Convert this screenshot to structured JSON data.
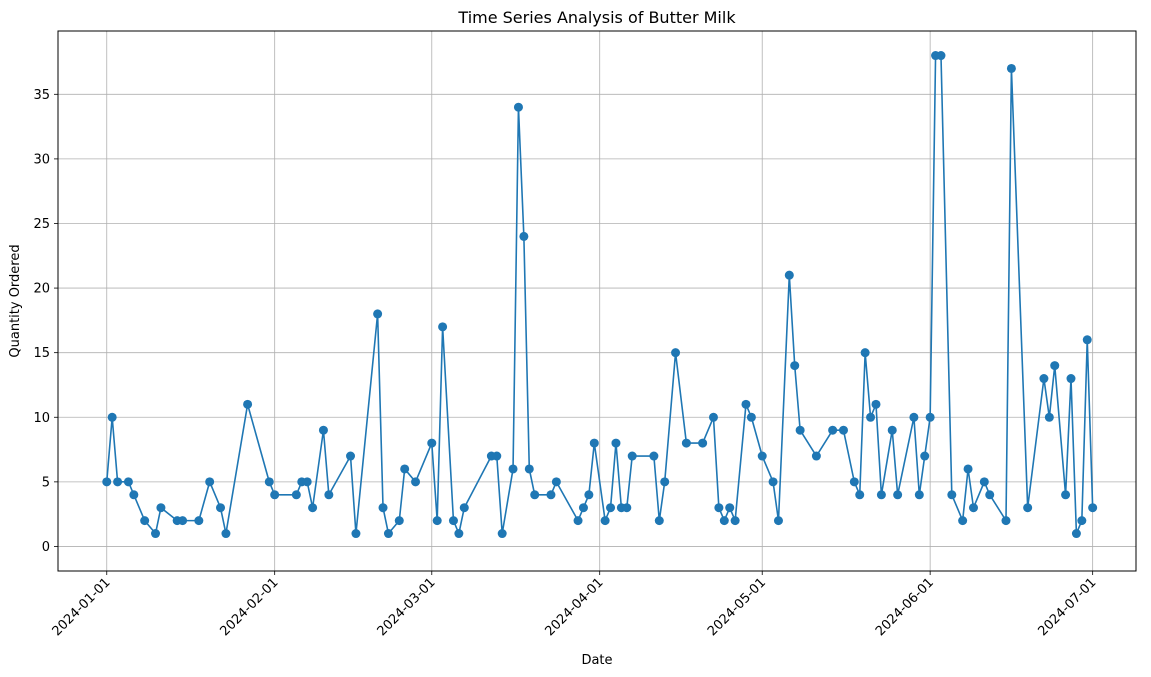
{
  "chart_data": {
    "type": "line",
    "title": "Time Series Analysis of Butter Milk",
    "xlabel": "Date",
    "ylabel": "Quantity Ordered",
    "xlim": [
      "2023-12-23",
      "2024-07-09"
    ],
    "ylim": [
      -1.9,
      39.9
    ],
    "grid": true,
    "color": "#1f77b4",
    "x_ticks": [
      "2024-01-01",
      "2024-02-01",
      "2024-03-01",
      "2024-04-01",
      "2024-05-01",
      "2024-06-01",
      "2024-07-01"
    ],
    "y_ticks": [
      0,
      5,
      10,
      15,
      20,
      25,
      30,
      35
    ],
    "series": [
      {
        "marker": "circle",
        "points": [
          [
            "2024-01-01",
            5
          ],
          [
            "2024-01-02",
            10
          ],
          [
            "2024-01-03",
            5
          ],
          [
            "2024-01-05",
            5
          ],
          [
            "2024-01-06",
            4
          ],
          [
            "2024-01-08",
            2
          ],
          [
            "2024-01-10",
            1
          ],
          [
            "2024-01-11",
            3
          ],
          [
            "2024-01-14",
            2
          ],
          [
            "2024-01-15",
            2
          ],
          [
            "2024-01-18",
            2
          ],
          [
            "2024-01-20",
            5
          ],
          [
            "2024-01-22",
            3
          ],
          [
            "2024-01-23",
            1
          ],
          [
            "2024-01-27",
            11
          ],
          [
            "2024-01-31",
            5
          ],
          [
            "2024-02-01",
            4
          ],
          [
            "2024-02-05",
            4
          ],
          [
            "2024-02-06",
            5
          ],
          [
            "2024-02-07",
            5
          ],
          [
            "2024-02-08",
            3
          ],
          [
            "2024-02-10",
            9
          ],
          [
            "2024-02-11",
            4
          ],
          [
            "2024-02-15",
            7
          ],
          [
            "2024-02-16",
            1
          ],
          [
            "2024-02-20",
            18
          ],
          [
            "2024-02-21",
            3
          ],
          [
            "2024-02-22",
            1
          ],
          [
            "2024-02-24",
            2
          ],
          [
            "2024-02-25",
            6
          ],
          [
            "2024-02-27",
            5
          ],
          [
            "2024-03-01",
            8
          ],
          [
            "2024-03-02",
            2
          ],
          [
            "2024-03-03",
            17
          ],
          [
            "2024-03-05",
            2
          ],
          [
            "2024-03-06",
            1
          ],
          [
            "2024-03-07",
            3
          ],
          [
            "2024-03-12",
            7
          ],
          [
            "2024-03-13",
            7
          ],
          [
            "2024-03-14",
            1
          ],
          [
            "2024-03-16",
            6
          ],
          [
            "2024-03-17",
            34
          ],
          [
            "2024-03-18",
            24
          ],
          [
            "2024-03-19",
            6
          ],
          [
            "2024-03-20",
            4
          ],
          [
            "2024-03-23",
            4
          ],
          [
            "2024-03-24",
            5
          ],
          [
            "2024-03-28",
            2
          ],
          [
            "2024-03-29",
            3
          ],
          [
            "2024-03-30",
            4
          ],
          [
            "2024-03-31",
            8
          ],
          [
            "2024-04-02",
            2
          ],
          [
            "2024-04-03",
            3
          ],
          [
            "2024-04-04",
            8
          ],
          [
            "2024-04-05",
            3
          ],
          [
            "2024-04-06",
            3
          ],
          [
            "2024-04-07",
            7
          ],
          [
            "2024-04-11",
            7
          ],
          [
            "2024-04-12",
            2
          ],
          [
            "2024-04-13",
            5
          ],
          [
            "2024-04-15",
            15
          ],
          [
            "2024-04-17",
            8
          ],
          [
            "2024-04-20",
            8
          ],
          [
            "2024-04-22",
            10
          ],
          [
            "2024-04-23",
            3
          ],
          [
            "2024-04-24",
            2
          ],
          [
            "2024-04-25",
            3
          ],
          [
            "2024-04-26",
            2
          ],
          [
            "2024-04-28",
            11
          ],
          [
            "2024-04-29",
            10
          ],
          [
            "2024-05-01",
            7
          ],
          [
            "2024-05-03",
            5
          ],
          [
            "2024-05-04",
            2
          ],
          [
            "2024-05-06",
            21
          ],
          [
            "2024-05-07",
            14
          ],
          [
            "2024-05-08",
            9
          ],
          [
            "2024-05-11",
            7
          ],
          [
            "2024-05-14",
            9
          ],
          [
            "2024-05-16",
            9
          ],
          [
            "2024-05-18",
            5
          ],
          [
            "2024-05-19",
            4
          ],
          [
            "2024-05-20",
            15
          ],
          [
            "2024-05-21",
            10
          ],
          [
            "2024-05-22",
            11
          ],
          [
            "2024-05-23",
            4
          ],
          [
            "2024-05-25",
            9
          ],
          [
            "2024-05-26",
            4
          ],
          [
            "2024-05-29",
            10
          ],
          [
            "2024-05-30",
            4
          ],
          [
            "2024-05-31",
            7
          ],
          [
            "2024-06-01",
            10
          ],
          [
            "2024-06-02",
            38
          ],
          [
            "2024-06-03",
            38
          ],
          [
            "2024-06-05",
            4
          ],
          [
            "2024-06-07",
            2
          ],
          [
            "2024-06-08",
            6
          ],
          [
            "2024-06-09",
            3
          ],
          [
            "2024-06-11",
            5
          ],
          [
            "2024-06-12",
            4
          ],
          [
            "2024-06-15",
            2
          ],
          [
            "2024-06-16",
            37
          ],
          [
            "2024-06-19",
            3
          ],
          [
            "2024-06-22",
            13
          ],
          [
            "2024-06-23",
            10
          ],
          [
            "2024-06-24",
            14
          ],
          [
            "2024-06-26",
            4
          ],
          [
            "2024-06-27",
            13
          ],
          [
            "2024-06-28",
            1
          ],
          [
            "2024-06-29",
            2
          ],
          [
            "2024-06-30",
            16
          ],
          [
            "2024-07-01",
            3
          ]
        ]
      }
    ]
  }
}
